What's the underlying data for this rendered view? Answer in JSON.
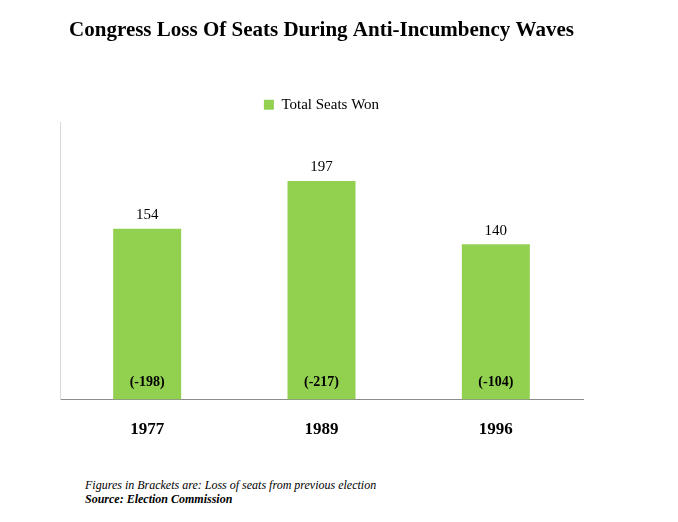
{
  "chart_data": {
    "type": "bar",
    "title": "Congress Loss Of Seats During Anti-Incumbency Waves",
    "categories": [
      "1977",
      "1989",
      "1996"
    ],
    "series": [
      {
        "name": "Total Seats Won",
        "color": "#92d050",
        "values": [
          154,
          197,
          140
        ]
      }
    ],
    "loss_values": [
      -198,
      -217,
      -104
    ],
    "loss_labels": [
      "(-198)",
      "(-217)",
      "(-104)"
    ],
    "note": "Figures in Brackets are: Loss of seats from previous election",
    "source": "Source: Election Commission",
    "ylim": [
      0,
      250
    ],
    "yticks": [],
    "grid": false,
    "legend": "top",
    "data_labels": true,
    "tick_labels": "x"
  }
}
